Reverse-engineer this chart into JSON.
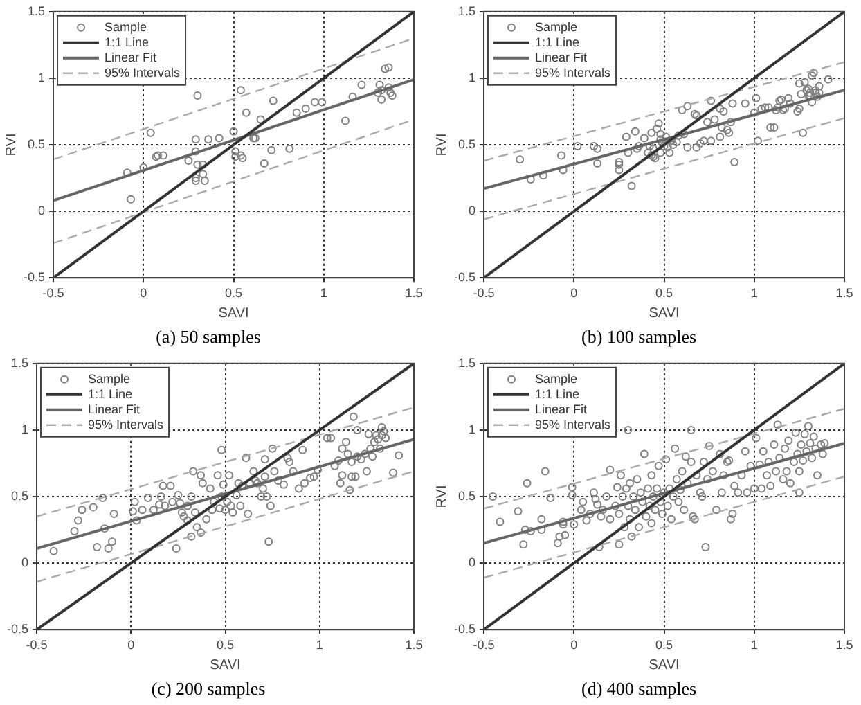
{
  "chart_data": [
    {
      "type": "scatter",
      "subtitle": "(a) 50 samples",
      "xlabel": "SAVI",
      "ylabel": "RVI",
      "xlim": [
        -0.5,
        1.5
      ],
      "ylim": [
        -0.5,
        1.5
      ],
      "xticks": [
        -0.5,
        0,
        0.5,
        1,
        1.5
      ],
      "yticks": [
        -0.5,
        0,
        0.5,
        1,
        1.5
      ],
      "grid": true,
      "legend": "top left",
      "series": [
        {
          "name": "Sample",
          "type": "scatter",
          "marker": "circle",
          "color": "#808080",
          "x": [
            -0.09,
            -0.07,
            0.04,
            0.0,
            0.07,
            0.08,
            0.11,
            0.25,
            0.3,
            0.29,
            0.29,
            0.29,
            0.29,
            0.3,
            0.33,
            0.33,
            0.34,
            0.36,
            0.42,
            0.5,
            0.51,
            0.51,
            0.54,
            0.54,
            0.55,
            0.57,
            0.61,
            0.62,
            0.65,
            0.67,
            0.71,
            0.72,
            0.81,
            0.85,
            0.9,
            0.95,
            0.99,
            1.12,
            1.16,
            1.21,
            1.3,
            1.31,
            1.32,
            1.34,
            1.36,
            1.37,
            1.38,
            1.32,
            1.36
          ],
          "values": [
            0.29,
            0.09,
            0.59,
            0.33,
            0.41,
            0.42,
            0.42,
            0.38,
            0.87,
            0.54,
            0.45,
            0.25,
            0.23,
            0.35,
            0.35,
            0.28,
            0.23,
            0.54,
            0.55,
            0.6,
            0.45,
            0.41,
            0.91,
            0.42,
            0.4,
            0.74,
            0.55,
            0.55,
            0.69,
            0.36,
            0.46,
            0.83,
            0.47,
            0.74,
            0.77,
            0.82,
            0.82,
            0.68,
            0.86,
            0.95,
            0.89,
            0.95,
            0.84,
            1.07,
            1.08,
            0.89,
            0.87,
            0.91,
            0.93
          ]
        },
        {
          "name": "1:1 Line",
          "type": "line",
          "color": "#333333",
          "x": [
            -0.5,
            1.5
          ],
          "values": [
            -0.5,
            1.5
          ]
        },
        {
          "name": "Linear Fit",
          "type": "line",
          "color": "#666666",
          "x": [
            -0.5,
            1.5
          ],
          "values": [
            0.08,
            0.99
          ]
        },
        {
          "name": "95% Intervals",
          "type": "line",
          "line_style": "dashed",
          "color": "#aaaaaa",
          "x": [
            -0.5,
            1.5
          ],
          "values": [
            0.39,
            1.3
          ]
        },
        {
          "type": "line",
          "line_style": "dashed",
          "color": "#aaaaaa",
          "x": [
            -0.5,
            1.5
          ],
          "values": [
            -0.24,
            0.69
          ]
        }
      ]
    },
    {
      "type": "scatter",
      "subtitle": "(b) 100 samples",
      "xlabel": "SAVI",
      "ylabel": "RVI",
      "xlim": [
        -0.5,
        1.5
      ],
      "ylim": [
        -0.5,
        1.5
      ],
      "xticks": [
        -0.5,
        0,
        0.5,
        1,
        1.5
      ],
      "yticks": [
        -0.5,
        0,
        0.5,
        1,
        1.5
      ],
      "grid": true,
      "legend": "top left",
      "series": [
        {
          "name": "Sample",
          "type": "scatter",
          "marker": "circle",
          "color": "#808080",
          "x": [
            -0.3,
            -0.24,
            -0.17,
            -0.07,
            -0.06,
            0.02,
            0.11,
            0.13,
            0.13,
            0.25,
            0.25,
            0.25,
            0.29,
            0.3,
            0.32,
            0.34,
            0.35,
            0.36,
            0.39,
            0.41,
            0.43,
            0.43,
            0.44,
            0.45,
            0.44,
            0.46,
            0.47,
            0.48,
            0.48,
            0.49,
            0.5,
            0.51,
            0.52,
            0.53,
            0.54,
            0.55,
            0.57,
            0.6,
            0.61,
            0.63,
            0.63,
            0.67,
            0.68,
            0.68,
            0.7,
            0.72,
            0.74,
            0.76,
            0.76,
            0.78,
            0.81,
            0.81,
            0.82,
            0.83,
            0.85,
            0.86,
            0.87,
            0.88,
            0.89,
            0.95,
            1.01,
            1.02,
            1.04,
            1.06,
            1.08,
            1.09,
            1.11,
            1.12,
            1.13,
            1.14,
            1.15,
            1.16,
            1.17,
            1.2,
            1.24,
            1.25,
            1.26,
            1.27,
            1.28,
            1.29,
            1.3,
            1.3,
            1.31,
            1.32,
            1.32,
            1.33,
            1.34,
            1.34,
            1.35,
            1.36,
            1.36,
            1.41,
            1.31,
            1.25,
            1.19,
            1.0,
            0.48,
            0.42,
            0.58
          ],
          "values": [
            0.39,
            0.24,
            0.27,
            0.42,
            0.31,
            0.49,
            0.49,
            0.47,
            0.36,
            0.37,
            0.35,
            0.31,
            0.56,
            0.44,
            0.19,
            0.6,
            0.47,
            0.49,
            0.55,
            0.44,
            0.59,
            0.42,
            0.41,
            0.4,
            0.47,
            0.62,
            0.66,
            0.58,
            0.44,
            0.51,
            0.49,
            0.56,
            0.48,
            0.44,
            0.53,
            0.5,
            0.52,
            0.76,
            0.58,
            0.48,
            0.79,
            0.73,
            0.72,
            0.48,
            0.51,
            0.53,
            0.67,
            0.53,
            0.83,
            0.69,
            0.77,
            0.56,
            0.63,
            0.75,
            0.61,
            0.59,
            0.67,
            0.81,
            0.37,
            0.81,
            0.85,
            0.53,
            0.77,
            0.78,
            0.78,
            0.63,
            0.63,
            0.76,
            0.78,
            0.83,
            0.84,
            0.76,
            0.77,
            0.81,
            0.75,
            0.77,
            0.88,
            0.59,
            0.97,
            0.91,
            0.87,
            0.92,
            0.89,
            0.82,
            1.02,
            1.04,
            0.91,
            0.89,
            0.86,
            0.94,
            0.89,
            0.99,
            0.87,
            0.96,
            0.85,
            0.74,
            0.54,
            0.49,
            0.57
          ]
        },
        {
          "name": "1:1 Line",
          "type": "line",
          "color": "#333333",
          "x": [
            -0.5,
            1.5
          ],
          "values": [
            -0.5,
            1.5
          ]
        },
        {
          "name": "Linear Fit",
          "type": "line",
          "color": "#666666",
          "x": [
            -0.5,
            1.5
          ],
          "values": [
            0.17,
            0.91
          ]
        },
        {
          "name": "95% Intervals",
          "type": "line",
          "line_style": "dashed",
          "color": "#aaaaaa",
          "x": [
            -0.5,
            1.5
          ],
          "values": [
            0.38,
            1.12
          ]
        },
        {
          "type": "line",
          "line_style": "dashed",
          "color": "#aaaaaa",
          "x": [
            -0.5,
            1.5
          ],
          "values": [
            -0.06,
            0.7
          ]
        }
      ]
    },
    {
      "type": "scatter",
      "subtitle": "(c) 200 samples",
      "xlabel": "SAVI",
      "xlim": [
        -0.5,
        1.5
      ],
      "ylim": [
        -0.5,
        1.5
      ],
      "xticks": [
        -0.5,
        0,
        0.5,
        1,
        1.5
      ],
      "yticks": [
        -0.5,
        0,
        0.5,
        1,
        1.5
      ],
      "grid": true,
      "legend": "top left",
      "series": [
        {
          "name": "Sample",
          "type": "scatter",
          "marker": "circle",
          "color": "#808080",
          "x": [
            -0.41,
            -0.3,
            -0.28,
            -0.26,
            -0.2,
            -0.18,
            -0.15,
            -0.14,
            -0.12,
            -0.1,
            -0.09,
            0.01,
            0.02,
            0.03,
            0.06,
            0.09,
            0.12,
            0.15,
            0.16,
            0.17,
            0.21,
            0.18,
            0.22,
            0.24,
            0.25,
            0.26,
            0.27,
            0.28,
            0.3,
            0.3,
            0.32,
            0.33,
            0.32,
            0.34,
            0.35,
            0.37,
            0.37,
            0.38,
            0.4,
            0.42,
            0.43,
            0.44,
            0.46,
            0.47,
            0.48,
            0.48,
            0.49,
            0.5,
            0.51,
            0.52,
            0.53,
            0.54,
            0.56,
            0.57,
            0.58,
            0.59,
            0.61,
            0.62,
            0.63,
            0.65,
            0.66,
            0.67,
            0.69,
            0.7,
            0.71,
            0.71,
            0.72,
            0.73,
            0.74,
            0.75,
            0.76,
            0.78,
            0.81,
            0.83,
            0.84,
            0.86,
            0.89,
            0.91,
            0.92,
            0.95,
            0.97,
            0.99,
            1.04,
            1.06,
            1.08,
            1.1,
            1.11,
            1.12,
            1.12,
            1.14,
            1.15,
            1.16,
            1.17,
            1.17,
            1.18,
            1.19,
            1.2,
            1.2,
            1.22,
            1.24,
            1.25,
            1.26,
            1.27,
            1.28,
            1.29,
            1.3,
            1.31,
            1.32,
            1.33,
            1.33,
            1.34,
            1.35,
            1.39,
            1.42
          ],
          "values": [
            0.09,
            0.24,
            0.32,
            0.4,
            0.42,
            0.12,
            0.49,
            0.26,
            0.11,
            0.16,
            0.37,
            0.39,
            0.46,
            0.32,
            0.4,
            0.49,
            0.4,
            0.44,
            0.5,
            0.58,
            0.58,
            0.43,
            0.46,
            0.11,
            0.51,
            0.45,
            0.38,
            0.35,
            0.43,
            0.32,
            0.5,
            0.69,
            0.2,
            0.38,
            0.27,
            0.66,
            0.23,
            0.6,
            0.33,
            0.56,
            0.4,
            0.46,
            0.66,
            0.41,
            0.85,
            0.5,
            0.59,
            0.4,
            0.46,
            0.66,
            0.43,
            0.38,
            0.51,
            0.6,
            0.43,
            0.58,
            0.79,
            0.37,
            0.6,
            0.69,
            0.62,
            0.6,
            0.5,
            0.56,
            0.65,
            0.78,
            0.5,
            0.16,
            0.43,
            0.86,
            0.69,
            0.62,
            0.59,
            0.79,
            0.76,
            0.69,
            0.56,
            0.85,
            0.6,
            0.64,
            0.65,
            0.7,
            0.94,
            0.94,
            0.73,
            0.77,
            0.6,
            0.66,
            0.86,
            0.91,
            0.82,
            0.55,
            0.76,
            0.65,
            1.1,
            0.65,
            0.8,
            1.0,
            0.78,
            0.82,
            0.69,
            0.97,
            0.86,
            0.8,
            0.91,
            0.96,
            0.93,
            0.86,
            1.02,
            0.96,
            0.99,
            0.94,
            0.68,
            0.81
          ]
        },
        {
          "name": "1:1 Line",
          "type": "line",
          "color": "#333333",
          "x": [
            -0.5,
            1.5
          ],
          "values": [
            -0.5,
            1.5
          ]
        },
        {
          "name": "Linear Fit",
          "type": "line",
          "color": "#666666",
          "x": [
            -0.5,
            1.5
          ],
          "values": [
            0.11,
            0.93
          ]
        },
        {
          "name": "95% Intervals",
          "type": "line",
          "line_style": "dashed",
          "color": "#aaaaaa",
          "x": [
            -0.5,
            1.5
          ],
          "values": [
            0.35,
            1.17
          ]
        },
        {
          "type": "line",
          "line_style": "dashed",
          "color": "#aaaaaa",
          "x": [
            -0.5,
            1.5
          ],
          "values": [
            -0.14,
            0.69
          ]
        }
      ]
    },
    {
      "type": "scatter",
      "subtitle": "(d) 400 samples",
      "xlabel": "SAVI",
      "ylabel": "RVI",
      "xlim": [
        -0.5,
        1.5
      ],
      "ylim": [
        -0.5,
        1.5
      ],
      "xticks": [
        -0.5,
        0,
        0.5,
        1,
        1.5
      ],
      "yticks": [
        -0.5,
        0,
        0.5,
        1,
        1.5
      ],
      "grid": true,
      "legend": "top left",
      "series": [
        {
          "name": "Sample",
          "type": "scatter",
          "marker": "circle",
          "color": "#808080",
          "x": [
            -0.45,
            -0.41,
            -0.31,
            -0.28,
            -0.26,
            -0.27,
            -0.24,
            -0.18,
            -0.18,
            -0.16,
            -0.13,
            -0.09,
            -0.08,
            -0.06,
            -0.05,
            -0.06,
            -0.01,
            -0.01,
            0.0,
            0.04,
            0.05,
            0.07,
            0.09,
            0.11,
            0.12,
            0.13,
            0.14,
            0.15,
            0.16,
            0.18,
            0.2,
            0.2,
            0.23,
            0.24,
            0.25,
            0.25,
            0.26,
            0.27,
            0.28,
            0.29,
            0.3,
            0.3,
            0.31,
            0.31,
            0.32,
            0.33,
            0.34,
            0.35,
            0.36,
            0.37,
            0.38,
            0.39,
            0.4,
            0.41,
            0.42,
            0.43,
            0.43,
            0.44,
            0.45,
            0.46,
            0.47,
            0.48,
            0.49,
            0.5,
            0.51,
            0.52,
            0.53,
            0.54,
            0.55,
            0.56,
            0.57,
            0.58,
            0.59,
            0.6,
            0.61,
            0.62,
            0.63,
            0.65,
            0.65,
            0.66,
            0.67,
            0.68,
            0.7,
            0.71,
            0.72,
            0.73,
            0.74,
            0.75,
            0.77,
            0.79,
            0.81,
            0.82,
            0.83,
            0.85,
            0.86,
            0.87,
            0.88,
            0.89,
            0.91,
            0.93,
            0.95,
            0.96,
            0.98,
            1.0,
            1.01,
            1.03,
            1.04,
            1.05,
            1.07,
            1.08,
            1.09,
            1.11,
            1.12,
            1.13,
            1.14,
            1.16,
            1.17,
            1.18,
            1.19,
            1.2,
            1.22,
            1.23,
            1.24,
            1.25,
            1.25,
            1.26,
            1.27,
            1.28,
            1.29,
            1.3,
            1.31,
            1.32,
            1.33,
            1.34,
            1.35,
            1.37,
            1.38,
            1.39
          ],
          "values": [
            0.5,
            0.31,
            0.39,
            0.14,
            0.6,
            0.25,
            0.24,
            0.25,
            0.33,
            0.69,
            0.49,
            0.15,
            0.2,
            0.29,
            0.21,
            0.31,
            0.51,
            0.57,
            0.29,
            0.4,
            0.46,
            0.32,
            0.37,
            0.53,
            0.48,
            0.44,
            0.12,
            0.35,
            0.4,
            0.5,
            0.7,
            0.33,
            0.43,
            0.57,
            0.14,
            0.37,
            0.66,
            0.5,
            0.27,
            0.56,
            1.0,
            0.43,
            0.33,
            0.6,
            0.2,
            0.5,
            0.4,
            0.63,
            0.27,
            0.53,
            0.46,
            0.82,
            0.35,
            0.56,
            0.43,
            0.66,
            0.3,
            0.5,
            0.4,
            0.56,
            0.73,
            0.46,
            0.37,
            0.53,
            0.78,
            0.43,
            0.56,
            0.33,
            0.5,
            0.86,
            0.63,
            0.46,
            0.55,
            0.69,
            0.4,
            0.8,
            0.6,
            0.76,
            1.0,
            0.35,
            0.33,
            0.66,
            0.53,
            0.5,
            0.76,
            0.12,
            0.63,
            0.88,
            0.69,
            0.4,
            0.82,
            0.53,
            0.66,
            0.76,
            0.77,
            0.33,
            0.37,
            0.58,
            0.53,
            0.66,
            0.84,
            0.53,
            0.73,
            0.56,
            0.94,
            0.74,
            0.56,
            0.84,
            0.66,
            0.76,
            0.58,
            0.89,
            0.69,
            1.04,
            0.79,
            0.63,
            0.86,
            0.69,
            0.92,
            0.6,
            0.76,
            0.98,
            0.82,
            0.69,
            0.53,
            0.89,
            0.77,
            0.97,
            0.84,
            1.03,
            0.9,
            0.79,
            0.95,
            0.86,
            0.66,
            0.89,
            0.82,
            0.9
          ]
        },
        {
          "name": "1:1 Line",
          "type": "line",
          "color": "#333333",
          "x": [
            -0.5,
            1.5
          ],
          "values": [
            -0.5,
            1.5
          ]
        },
        {
          "name": "Linear Fit",
          "type": "line",
          "color": "#666666",
          "x": [
            -0.5,
            1.5
          ],
          "values": [
            0.15,
            0.9
          ]
        },
        {
          "name": "95% Intervals",
          "type": "line",
          "line_style": "dashed",
          "color": "#aaaaaa",
          "x": [
            -0.5,
            1.5
          ],
          "values": [
            0.41,
            1.16
          ]
        },
        {
          "type": "line",
          "line_style": "dashed",
          "color": "#aaaaaa",
          "x": [
            -0.5,
            1.5
          ],
          "values": [
            -0.11,
            0.65
          ]
        }
      ]
    }
  ]
}
